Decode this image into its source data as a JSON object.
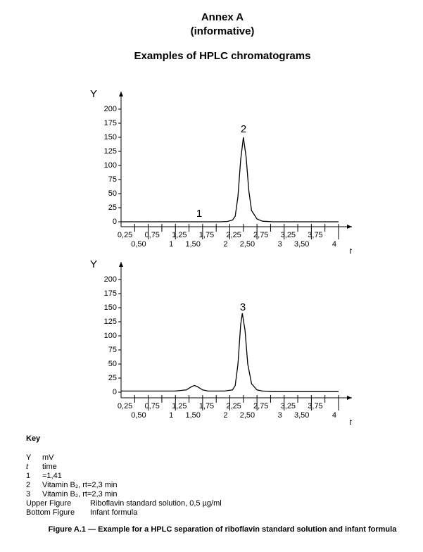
{
  "header": {
    "annex": "Annex A",
    "note": "(informative)",
    "title": "Examples of HPLC chromatograms"
  },
  "chart_data": [
    {
      "type": "line",
      "y_label": "Y",
      "x_label": "t",
      "color": "#000000",
      "xlim": [
        0,
        4
      ],
      "ylim": [
        0,
        200
      ],
      "xticks": [
        {
          "value": 0.25,
          "label": "0,25"
        },
        {
          "value": 0.5,
          "label": "0,50"
        },
        {
          "value": 0.75,
          "label": "0,75"
        },
        1,
        {
          "value": 1.25,
          "label": "1,25"
        },
        {
          "value": 1.5,
          "label": "1,50"
        },
        {
          "value": 1.75,
          "label": "1,75"
        },
        2,
        {
          "value": 2.25,
          "label": "2,25"
        },
        {
          "value": 2.5,
          "label": "2,50"
        },
        {
          "value": 2.75,
          "label": "2,75"
        },
        3,
        {
          "value": 3.25,
          "label": "3,25"
        },
        {
          "value": 3.5,
          "label": "3,50"
        },
        {
          "value": 3.75,
          "label": "3,75"
        },
        4
      ],
      "yticks": [
        0,
        25,
        50,
        75,
        100,
        125,
        150,
        175,
        200
      ],
      "x": [
        0,
        1.8,
        1.95,
        2.05,
        2.1,
        2.15,
        2.2,
        2.25,
        2.3,
        2.35,
        2.4,
        2.5,
        2.6,
        2.8,
        4
      ],
      "values": [
        0,
        0,
        0.5,
        3,
        10,
        45,
        110,
        150,
        115,
        55,
        20,
        5,
        1,
        0,
        0
      ],
      "annotations": [
        "1",
        "2"
      ]
    },
    {
      "type": "line",
      "y_label": "Y",
      "x_label": "t",
      "color": "#000000",
      "xlim": [
        0,
        4
      ],
      "ylim": [
        0,
        200
      ],
      "xticks": [
        {
          "value": 0.25,
          "label": "0,25"
        },
        {
          "value": 0.5,
          "label": "0,50"
        },
        {
          "value": 0.75,
          "label": "0,75"
        },
        1,
        {
          "value": 1.25,
          "label": "1,25"
        },
        {
          "value": 1.5,
          "label": "1,50"
        },
        {
          "value": 1.75,
          "label": "1,75"
        },
        2,
        {
          "value": 2.25,
          "label": "2,25"
        },
        {
          "value": 2.5,
          "label": "2,50"
        },
        {
          "value": 2.75,
          "label": "2,75"
        },
        3,
        {
          "value": 3.25,
          "label": "3,25"
        },
        {
          "value": 3.5,
          "label": "3,50"
        },
        {
          "value": 3.75,
          "label": "3,75"
        },
        4
      ],
      "yticks": [
        0,
        25,
        50,
        75,
        100,
        125,
        150,
        175,
        200
      ],
      "x": [
        0,
        1.0,
        1.2,
        1.3,
        1.35,
        1.4,
        1.5,
        1.6,
        1.9,
        2.05,
        2.1,
        2.15,
        2.2,
        2.23,
        2.28,
        2.33,
        2.4,
        2.5,
        2.6,
        2.8,
        4
      ],
      "values": [
        2,
        2,
        4,
        10,
        12,
        10,
        4,
        2,
        2,
        4,
        12,
        50,
        120,
        140,
        110,
        50,
        15,
        4,
        2,
        1,
        1
      ],
      "annotations": [
        "3"
      ]
    }
  ],
  "key": {
    "title": "Key",
    "items": [
      {
        "symbol": "Y",
        "meaning": "mV"
      },
      {
        "symbol": "t",
        "meaning": "time"
      },
      {
        "symbol": "1",
        "meaning": "=1,41"
      },
      {
        "symbol": "2",
        "meaning": "Vitamin B₂, rt=2,3 min"
      },
      {
        "symbol": "3",
        "meaning": "Vitamin B₂, rt=2,3 min"
      }
    ],
    "figures": [
      {
        "label": "Upper Figure",
        "meaning": "Riboflavin standard solution, 0,5 µg/ml"
      },
      {
        "label": "Bottom Figure",
        "meaning": "Infant formula"
      }
    ]
  },
  "caption": "Figure A.1 — Example for a HPLC separation of riboflavin standard solution and infant formula"
}
